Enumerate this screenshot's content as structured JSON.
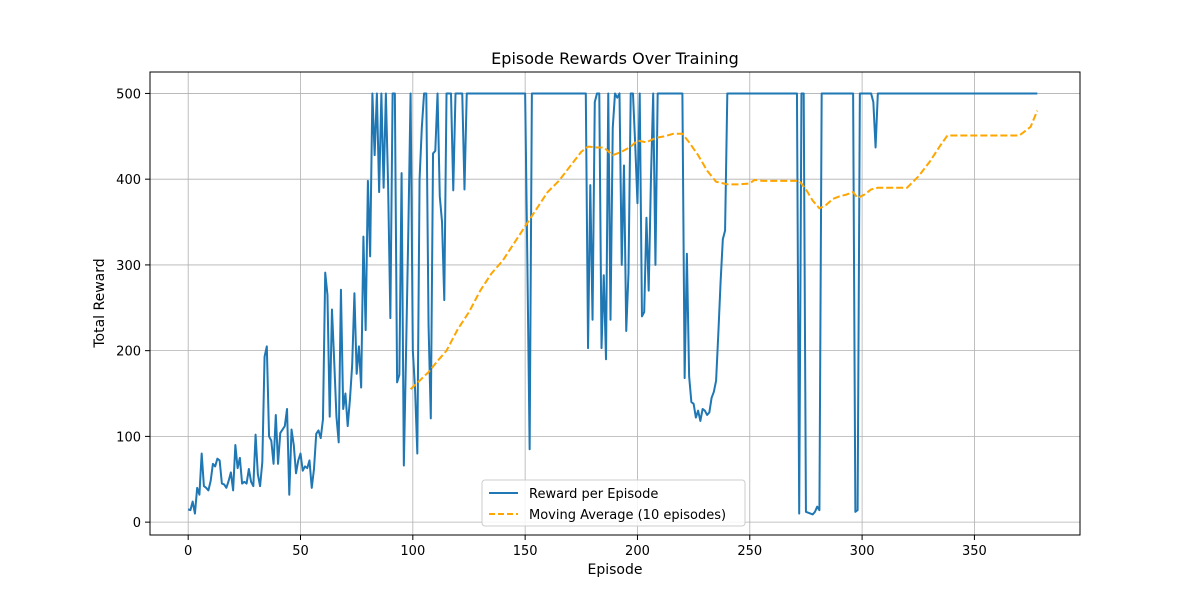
{
  "chart_data": {
    "type": "line",
    "title": "Episode Rewards Over Training",
    "xlabel": "Episode",
    "ylabel": "Total Reward",
    "xlim": [
      -17,
      397
    ],
    "ylim": [
      -15,
      525
    ],
    "xticks": [
      0,
      50,
      100,
      150,
      200,
      250,
      300,
      350
    ],
    "yticks": [
      0,
      100,
      200,
      300,
      400,
      500
    ],
    "grid": true,
    "legend_position": "bottom-center",
    "series": [
      {
        "name": "Reward per Episode",
        "color": "#1f77b4",
        "style": "solid",
        "points": [
          [
            0,
            15
          ],
          [
            1,
            14
          ],
          [
            2,
            24
          ],
          [
            3,
            10
          ],
          [
            4,
            40
          ],
          [
            5,
            32
          ],
          [
            6,
            80
          ],
          [
            7,
            42
          ],
          [
            8,
            40
          ],
          [
            9,
            37
          ],
          [
            10,
            48
          ],
          [
            11,
            68
          ],
          [
            12,
            65
          ],
          [
            13,
            74
          ],
          [
            14,
            72
          ],
          [
            15,
            45
          ],
          [
            16,
            44
          ],
          [
            17,
            40
          ],
          [
            18,
            48
          ],
          [
            19,
            58
          ],
          [
            20,
            37
          ],
          [
            21,
            90
          ],
          [
            22,
            63
          ],
          [
            23,
            75
          ],
          [
            24,
            45
          ],
          [
            25,
            47
          ],
          [
            26,
            45
          ],
          [
            27,
            62
          ],
          [
            28,
            47
          ],
          [
            29,
            42
          ],
          [
            30,
            102
          ],
          [
            31,
            56
          ],
          [
            32,
            42
          ],
          [
            33,
            70
          ],
          [
            34,
            193
          ],
          [
            35,
            205
          ],
          [
            36,
            100
          ],
          [
            37,
            95
          ],
          [
            38,
            68
          ],
          [
            39,
            125
          ],
          [
            40,
            68
          ],
          [
            41,
            104
          ],
          [
            42,
            108
          ],
          [
            43,
            112
          ],
          [
            44,
            132
          ],
          [
            45,
            32
          ],
          [
            46,
            108
          ],
          [
            47,
            90
          ],
          [
            48,
            57
          ],
          [
            49,
            72
          ],
          [
            50,
            80
          ],
          [
            51,
            60
          ],
          [
            52,
            65
          ],
          [
            53,
            63
          ],
          [
            54,
            72
          ],
          [
            55,
            40
          ],
          [
            56,
            62
          ],
          [
            57,
            103
          ],
          [
            58,
            107
          ],
          [
            59,
            98
          ],
          [
            60,
            120
          ],
          [
            61,
            291
          ],
          [
            62,
            265
          ],
          [
            63,
            123
          ],
          [
            64,
            248
          ],
          [
            65,
            188
          ],
          [
            66,
            123
          ],
          [
            67,
            93
          ],
          [
            68,
            271
          ],
          [
            69,
            132
          ],
          [
            70,
            150
          ],
          [
            71,
            112
          ],
          [
            72,
            143
          ],
          [
            73,
            183
          ],
          [
            74,
            267
          ],
          [
            75,
            173
          ],
          [
            76,
            205
          ],
          [
            77,
            157
          ],
          [
            78,
            333
          ],
          [
            79,
            224
          ],
          [
            80,
            398
          ],
          [
            81,
            310
          ],
          [
            82,
            500
          ],
          [
            83,
            428
          ],
          [
            84,
            500
          ],
          [
            85,
            385
          ],
          [
            86,
            500
          ],
          [
            87,
            390
          ],
          [
            88,
            500
          ],
          [
            89,
            392
          ],
          [
            90,
            238
          ],
          [
            91,
            500
          ],
          [
            92,
            500
          ],
          [
            93,
            163
          ],
          [
            94,
            172
          ],
          [
            95,
            407
          ],
          [
            96,
            66
          ],
          [
            97,
            200
          ],
          [
            98,
            340
          ],
          [
            99,
            500
          ],
          [
            100,
            200
          ],
          [
            101,
            155
          ],
          [
            102,
            80
          ],
          [
            103,
            400
          ],
          [
            104,
            460
          ],
          [
            105,
            500
          ],
          [
            106,
            500
          ],
          [
            107,
            230
          ],
          [
            108,
            121
          ],
          [
            109,
            430
          ],
          [
            110,
            433
          ],
          [
            111,
            500
          ],
          [
            112,
            380
          ],
          [
            113,
            350
          ],
          [
            114,
            259
          ],
          [
            115,
            500
          ],
          [
            116,
            500
          ],
          [
            117,
            500
          ],
          [
            118,
            387
          ],
          [
            119,
            500
          ],
          [
            120,
            500
          ],
          [
            121,
            500
          ],
          [
            122,
            500
          ],
          [
            123,
            388
          ],
          [
            124,
            500
          ],
          [
            150,
            500
          ],
          [
            151,
            300
          ],
          [
            152,
            85
          ],
          [
            153,
            500
          ],
          [
            175,
            500
          ],
          [
            176,
            500
          ],
          [
            177,
            500
          ],
          [
            178,
            203
          ],
          [
            179,
            393
          ],
          [
            180,
            236
          ],
          [
            181,
            490
          ],
          [
            182,
            500
          ],
          [
            183,
            500
          ],
          [
            184,
            203
          ],
          [
            185,
            288
          ],
          [
            186,
            190
          ],
          [
            187,
            500
          ],
          [
            188,
            236
          ],
          [
            189,
            460
          ],
          [
            190,
            500
          ],
          [
            191,
            495
          ],
          [
            192,
            500
          ],
          [
            193,
            300
          ],
          [
            194,
            416
          ],
          [
            195,
            223
          ],
          [
            196,
            290
          ],
          [
            197,
            500
          ],
          [
            198,
            500
          ],
          [
            199,
            440
          ],
          [
            200,
            372
          ],
          [
            201,
            500
          ],
          [
            202,
            240
          ],
          [
            203,
            245
          ],
          [
            204,
            355
          ],
          [
            205,
            270
          ],
          [
            206,
            400
          ],
          [
            207,
            500
          ],
          [
            208,
            300
          ],
          [
            209,
            500
          ],
          [
            210,
            500
          ],
          [
            220,
            500
          ],
          [
            221,
            168
          ],
          [
            222,
            313
          ],
          [
            223,
            170
          ],
          [
            224,
            140
          ],
          [
            225,
            138
          ],
          [
            226,
            122
          ],
          [
            227,
            130
          ],
          [
            228,
            118
          ],
          [
            229,
            132
          ],
          [
            230,
            130
          ],
          [
            231,
            125
          ],
          [
            232,
            128
          ],
          [
            233,
            145
          ],
          [
            234,
            152
          ],
          [
            235,
            165
          ],
          [
            236,
            220
          ],
          [
            237,
            280
          ],
          [
            238,
            330
          ],
          [
            239,
            340
          ],
          [
            240,
            500
          ],
          [
            271,
            500
          ],
          [
            272,
            10
          ],
          [
            273,
            500
          ],
          [
            274,
            500
          ],
          [
            275,
            12
          ],
          [
            276,
            11
          ],
          [
            277,
            10
          ],
          [
            278,
            9
          ],
          [
            279,
            12
          ],
          [
            280,
            18
          ],
          [
            281,
            14
          ],
          [
            282,
            500
          ],
          [
            296,
            500
          ],
          [
            297,
            12
          ],
          [
            298,
            14
          ],
          [
            299,
            500
          ],
          [
            304,
            500
          ],
          [
            305,
            490
          ],
          [
            306,
            437
          ],
          [
            307,
            500
          ],
          [
            378,
            500
          ]
        ]
      },
      {
        "name": "Moving Average (10 episodes)",
        "color": "#ffa500",
        "style": "dashed",
        "points": [
          [
            99,
            155
          ],
          [
            103,
            165
          ],
          [
            107,
            175
          ],
          [
            111,
            188
          ],
          [
            115,
            200
          ],
          [
            120,
            225
          ],
          [
            125,
            245
          ],
          [
            130,
            270
          ],
          [
            135,
            290
          ],
          [
            140,
            305
          ],
          [
            145,
            325
          ],
          [
            150,
            345
          ],
          [
            155,
            365
          ],
          [
            160,
            385
          ],
          [
            165,
            398
          ],
          [
            170,
            415
          ],
          [
            175,
            432
          ],
          [
            178,
            438
          ],
          [
            182,
            437
          ],
          [
            185,
            437
          ],
          [
            189,
            428
          ],
          [
            193,
            432
          ],
          [
            197,
            438
          ],
          [
            200,
            445
          ],
          [
            204,
            443
          ],
          [
            208,
            448
          ],
          [
            212,
            450
          ],
          [
            216,
            453
          ],
          [
            220,
            453
          ],
          [
            223,
            443
          ],
          [
            227,
            428
          ],
          [
            231,
            410
          ],
          [
            235,
            397
          ],
          [
            240,
            394
          ],
          [
            245,
            394
          ],
          [
            250,
            395
          ],
          [
            252,
            399
          ],
          [
            256,
            398
          ],
          [
            260,
            398
          ],
          [
            265,
            398
          ],
          [
            270,
            398
          ],
          [
            272,
            398
          ],
          [
            275,
            388
          ],
          [
            278,
            375
          ],
          [
            281,
            366
          ],
          [
            284,
            370
          ],
          [
            287,
            377
          ],
          [
            290,
            380
          ],
          [
            293,
            382
          ],
          [
            296,
            385
          ],
          [
            298,
            378
          ],
          [
            301,
            382
          ],
          [
            304,
            388
          ],
          [
            307,
            390
          ],
          [
            310,
            390
          ],
          [
            315,
            390
          ],
          [
            320,
            390
          ],
          [
            325,
            403
          ],
          [
            330,
            420
          ],
          [
            335,
            440
          ],
          [
            338,
            451
          ],
          [
            345,
            451
          ],
          [
            350,
            451
          ],
          [
            360,
            451
          ],
          [
            370,
            451
          ],
          [
            372,
            455
          ],
          [
            375,
            461
          ],
          [
            378,
            480
          ]
        ]
      }
    ]
  }
}
